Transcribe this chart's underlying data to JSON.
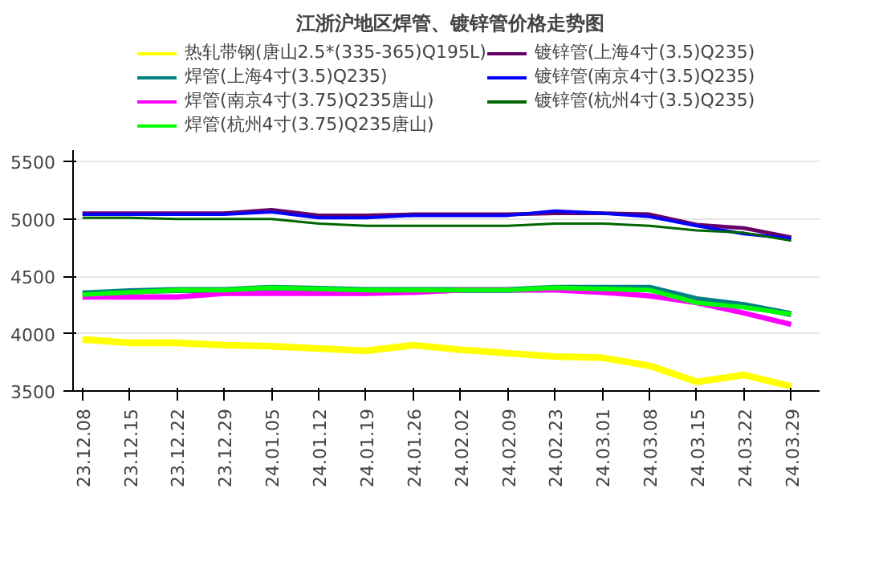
{
  "chart_data": {
    "type": "line",
    "title": "江浙沪地区焊管、镀锌管价格走势图",
    "categories": [
      "23.12.08",
      "23.12.15",
      "23.12.22",
      "23.12.29",
      "24.01.05",
      "24.01.12",
      "24.01.19",
      "24.01.26",
      "24.02.02",
      "24.02.09",
      "24.02.23",
      "24.03.01",
      "24.03.08",
      "24.03.15",
      "24.03.22",
      "24.03.29"
    ],
    "series": [
      {
        "name": "热轧带钢(唐山2.5*(335-365)Q195L)",
        "color": "#ffff00",
        "values": [
          3950,
          3920,
          3920,
          3900,
          3890,
          3870,
          3850,
          3900,
          3860,
          3830,
          3800,
          3790,
          3720,
          3580,
          3640,
          3540
        ]
      },
      {
        "name": "焊管(上海4寸(3.5)Q235)",
        "color": "#008080",
        "values": [
          4350,
          4370,
          4380,
          4380,
          4400,
          4390,
          4380,
          4380,
          4380,
          4380,
          4400,
          4400,
          4400,
          4300,
          4250,
          4170
        ]
      },
      {
        "name": "焊管(南京4寸(3.75)Q235唐山)",
        "color": "#ff00ff",
        "values": [
          4320,
          4320,
          4320,
          4350,
          4350,
          4350,
          4350,
          4360,
          4380,
          4380,
          4380,
          4360,
          4330,
          4270,
          4180,
          4080
        ]
      },
      {
        "name": "焊管(杭州4寸(3.75)Q235唐山)",
        "color": "#00ff00",
        "values": [
          4340,
          4360,
          4380,
          4380,
          4400,
          4390,
          4380,
          4380,
          4380,
          4380,
          4400,
          4390,
          4380,
          4270,
          4230,
          4170
        ]
      },
      {
        "name": "镀锌管(上海4寸(3.5)Q235)",
        "color": "#660066",
        "values": [
          5050,
          5050,
          5050,
          5050,
          5080,
          5030,
          5030,
          5040,
          5040,
          5040,
          5050,
          5050,
          5040,
          4950,
          4920,
          4840
        ]
      },
      {
        "name": "镀锌管(南京4寸(3.5)Q235)",
        "color": "#0000ff",
        "values": [
          5040,
          5040,
          5040,
          5040,
          5060,
          5010,
          5010,
          5030,
          5030,
          5030,
          5070,
          5050,
          5020,
          4940,
          4870,
          4830
        ]
      },
      {
        "name": "镀锌管(杭州4寸(3.5)Q235)",
        "color": "#006600",
        "values": [
          5010,
          5010,
          5000,
          5000,
          5000,
          4960,
          4940,
          4940,
          4940,
          4940,
          4960,
          4960,
          4940,
          4900,
          4880,
          4810
        ]
      }
    ],
    "ylim": [
      3500,
      5600
    ],
    "yticks": [
      3500,
      4000,
      4500,
      5000,
      5500
    ],
    "grid": "y",
    "legend": "top",
    "marker": "none",
    "line_style": "solid"
  }
}
